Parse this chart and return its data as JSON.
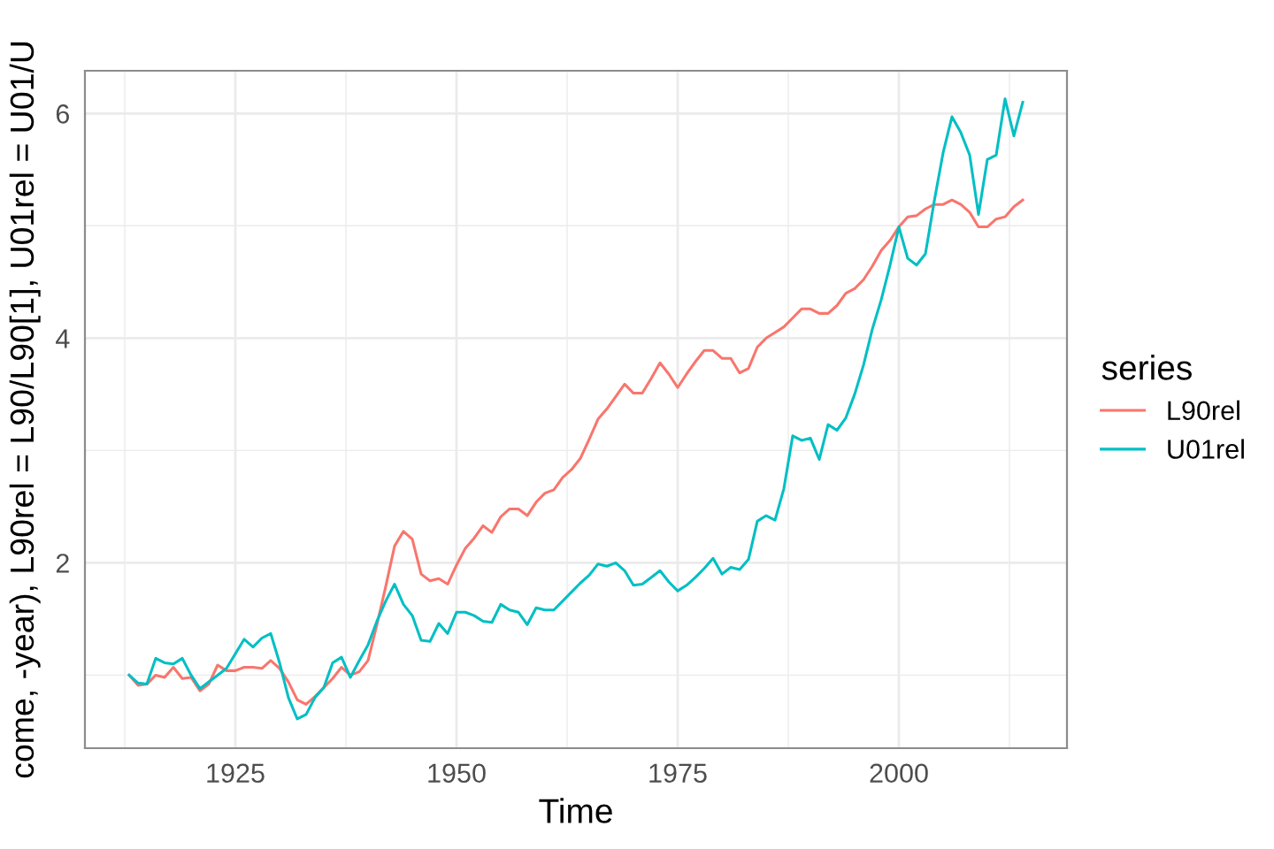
{
  "chart_data": {
    "type": "line",
    "xlabel": "Time",
    "ylabel": "come, -year), L90rel = L90/L90[1], U01rel = U01/U",
    "legend_title": "series",
    "x": [
      1913,
      1914,
      1915,
      1916,
      1917,
      1918,
      1919,
      1920,
      1921,
      1922,
      1923,
      1924,
      1925,
      1926,
      1927,
      1928,
      1929,
      1930,
      1931,
      1932,
      1933,
      1934,
      1935,
      1936,
      1937,
      1938,
      1939,
      1940,
      1941,
      1942,
      1943,
      1944,
      1945,
      1946,
      1947,
      1948,
      1949,
      1950,
      1951,
      1952,
      1953,
      1954,
      1955,
      1956,
      1957,
      1958,
      1959,
      1960,
      1961,
      1962,
      1963,
      1964,
      1965,
      1966,
      1967,
      1968,
      1969,
      1970,
      1971,
      1972,
      1973,
      1974,
      1975,
      1976,
      1977,
      1978,
      1979,
      1980,
      1981,
      1982,
      1983,
      1984,
      1985,
      1986,
      1987,
      1988,
      1989,
      1990,
      1991,
      1992,
      1993,
      1994,
      1995,
      1996,
      1997,
      1998,
      1999,
      2000,
      2001,
      2002,
      2003,
      2004,
      2005,
      2006,
      2007,
      2008,
      2009,
      2010,
      2011,
      2012,
      2013,
      2014
    ],
    "series": [
      {
        "name": "L90rel",
        "color": "#f8766d",
        "values": [
          1.0,
          0.91,
          0.92,
          1.0,
          0.98,
          1.07,
          0.97,
          0.98,
          0.86,
          0.92,
          1.09,
          1.04,
          1.04,
          1.07,
          1.07,
          1.06,
          1.13,
          1.06,
          0.94,
          0.78,
          0.74,
          0.81,
          0.89,
          0.97,
          1.07,
          1.0,
          1.03,
          1.13,
          1.45,
          1.79,
          2.15,
          2.28,
          2.21,
          1.9,
          1.84,
          1.86,
          1.81,
          1.98,
          2.13,
          2.22,
          2.33,
          2.27,
          2.41,
          2.48,
          2.48,
          2.42,
          2.54,
          2.62,
          2.65,
          2.76,
          2.83,
          2.93,
          3.1,
          3.28,
          3.37,
          3.48,
          3.59,
          3.51,
          3.51,
          3.64,
          3.78,
          3.68,
          3.56,
          3.68,
          3.79,
          3.89,
          3.89,
          3.82,
          3.82,
          3.69,
          3.73,
          3.92,
          4.0,
          4.05,
          4.1,
          4.18,
          4.26,
          4.26,
          4.22,
          4.22,
          4.29,
          4.4,
          4.44,
          4.52,
          4.64,
          4.78,
          4.87,
          4.99,
          5.08,
          5.09,
          5.15,
          5.19,
          5.19,
          5.23,
          5.19,
          5.12,
          4.99,
          4.99,
          5.06,
          5.08,
          5.17,
          5.23
        ]
      },
      {
        "name": "U01rel",
        "color": "#00bfc4",
        "values": [
          1.0,
          0.93,
          0.92,
          1.15,
          1.11,
          1.1,
          1.15,
          1.0,
          0.88,
          0.94,
          1.0,
          1.06,
          1.19,
          1.32,
          1.25,
          1.33,
          1.37,
          1.11,
          0.8,
          0.61,
          0.65,
          0.8,
          0.89,
          1.11,
          1.16,
          0.98,
          1.13,
          1.27,
          1.48,
          1.66,
          1.81,
          1.63,
          1.53,
          1.31,
          1.3,
          1.46,
          1.37,
          1.56,
          1.56,
          1.53,
          1.48,
          1.47,
          1.63,
          1.58,
          1.56,
          1.45,
          1.6,
          1.58,
          1.58,
          1.66,
          1.74,
          1.82,
          1.89,
          1.99,
          1.97,
          2.0,
          1.93,
          1.8,
          1.81,
          1.87,
          1.93,
          1.83,
          1.75,
          1.8,
          1.87,
          1.95,
          2.04,
          1.9,
          1.96,
          1.94,
          2.03,
          2.37,
          2.42,
          2.38,
          2.66,
          3.13,
          3.09,
          3.11,
          2.92,
          3.23,
          3.18,
          3.29,
          3.5,
          3.76,
          4.08,
          4.34,
          4.65,
          4.99,
          4.71,
          4.65,
          4.75,
          5.22,
          5.65,
          5.97,
          5.83,
          5.63,
          5.1,
          5.59,
          5.63,
          6.13,
          5.8,
          6.1
        ]
      }
    ],
    "xlim": [
      1908,
      2019
    ],
    "xticks": [
      {
        "value": 1912.5,
        "label": null
      },
      1925,
      {
        "value": 1937.5,
        "label": null
      },
      1950,
      {
        "value": 1962.5,
        "label": null
      },
      1975,
      {
        "value": 1987.5,
        "label": null
      },
      2000,
      {
        "value": 2012.5,
        "label": null
      }
    ],
    "ylim": [
      0.35,
      6.38
    ],
    "yticks": [
      {
        "value": 1,
        "label": null
      },
      2,
      {
        "value": 3,
        "label": null
      },
      4,
      {
        "value": 5,
        "label": null
      },
      6
    ],
    "grid": true,
    "legend": "right",
    "line_style": "solid",
    "marker": "none"
  }
}
